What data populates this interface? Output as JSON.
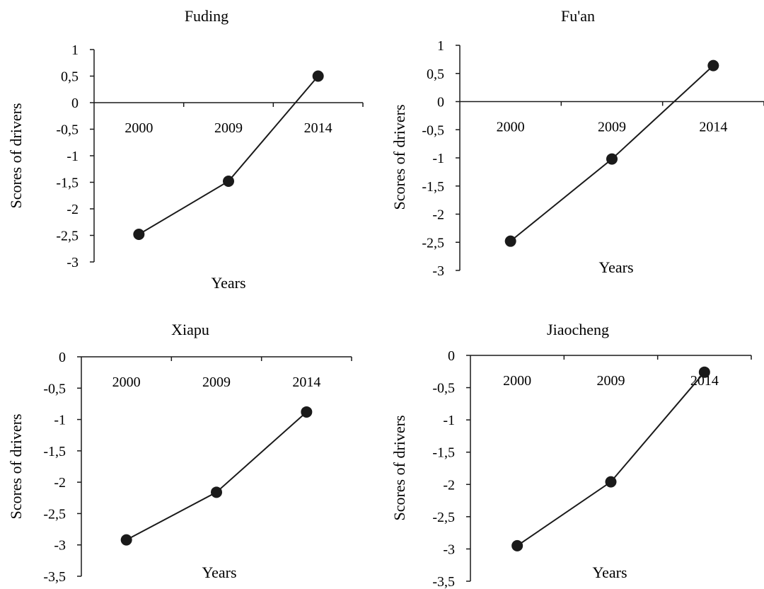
{
  "chart_data": [
    {
      "type": "line",
      "title": "Fuding",
      "xlabel": "Years",
      "ylabel": "Scores of drivers",
      "categories": [
        "2000",
        "2009",
        "2014"
      ],
      "values": [
        -2.48,
        -1.48,
        0.5
      ],
      "ylim": [
        -3,
        1
      ],
      "yticks": [
        1,
        0.5,
        0,
        -0.5,
        -1,
        -1.5,
        -2,
        -2.5,
        -3
      ],
      "ytick_labels": [
        "1",
        "0,5",
        "0",
        "-0,5",
        "-1",
        "-1,5",
        "-2",
        "-2,5",
        "-3"
      ],
      "grid": false,
      "legend": "none"
    },
    {
      "type": "line",
      "title": "Fu'an",
      "xlabel": "Years",
      "ylabel": "Scores of drivers",
      "categories": [
        "2000",
        "2009",
        "2014"
      ],
      "values": [
        -2.48,
        -1.02,
        0.64
      ],
      "ylim": [
        -3,
        1
      ],
      "yticks": [
        1,
        0.5,
        0,
        -0.5,
        -1,
        -1.5,
        -2,
        -2.5,
        -3
      ],
      "ytick_labels": [
        "1",
        "0,5",
        "0",
        "-0,5",
        "-1",
        "-1,5",
        "-2",
        "-2,5",
        "-3"
      ],
      "grid": false,
      "legend": "none"
    },
    {
      "type": "line",
      "title": "Xiapu",
      "xlabel": "Years",
      "ylabel": "Scores of drivers",
      "categories": [
        "2000",
        "2009",
        "2014"
      ],
      "values": [
        -2.92,
        -2.16,
        -0.88
      ],
      "ylim": [
        -3.5,
        0
      ],
      "yticks": [
        0,
        -0.5,
        -1,
        -1.5,
        -2,
        -2.5,
        -3,
        -3.5
      ],
      "ytick_labels": [
        "0",
        "-0,5",
        "-1",
        "-1,5",
        "-2",
        "-2,5",
        "-3",
        "-3,5"
      ],
      "grid": false,
      "legend": "none"
    },
    {
      "type": "line",
      "title": "Jiaocheng",
      "xlabel": "Years",
      "ylabel": "Scores of drivers",
      "categories": [
        "2000",
        "2009",
        "2014"
      ],
      "values": [
        -2.95,
        -1.96,
        -0.26
      ],
      "ylim": [
        -3.5,
        0
      ],
      "yticks": [
        0,
        -0.5,
        -1,
        -1.5,
        -2,
        -2.5,
        -3,
        -3.5
      ],
      "ytick_labels": [
        "0",
        "-0,5",
        "-1",
        "-1,5",
        "-2",
        "-2,5",
        "-3",
        "-3,5"
      ],
      "grid": false,
      "legend": "none"
    }
  ],
  "colors": {
    "line": "#1a1a1a",
    "marker": "#1a1a1a",
    "axis": "#1a1a1a"
  }
}
